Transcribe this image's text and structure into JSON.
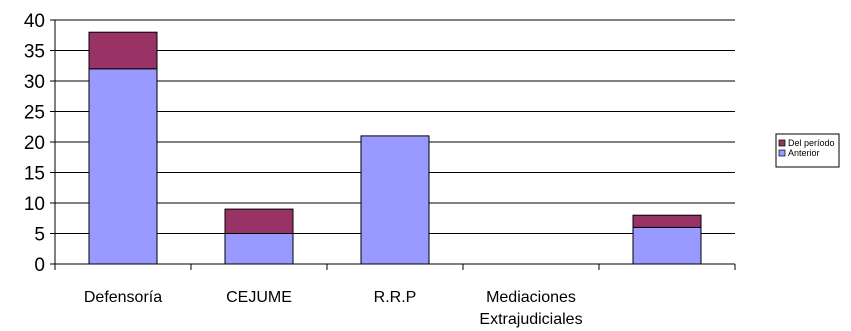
{
  "chart_data": {
    "type": "bar",
    "stacked": true,
    "categories": [
      [
        "Defensoría"
      ],
      [
        "CEJUME"
      ],
      [
        "R.R.P"
      ],
      [
        "Mediaciones",
        "Extrajudiciales"
      ],
      []
    ],
    "series": [
      {
        "name": "Anterior",
        "values": [
          32,
          5,
          21,
          0,
          6
        ],
        "color": "#9999ff"
      },
      {
        "name": "Del período",
        "values": [
          6,
          4,
          0,
          0,
          2
        ],
        "color": "#993366"
      }
    ],
    "legend_order": [
      "Del período",
      "Anterior"
    ],
    "ylim": [
      0,
      40
    ],
    "yticks": [
      0,
      5,
      10,
      15,
      20,
      25,
      30,
      35,
      40
    ],
    "grid": true,
    "legend_position": "right",
    "title": "",
    "xlabel": "",
    "ylabel": ""
  }
}
